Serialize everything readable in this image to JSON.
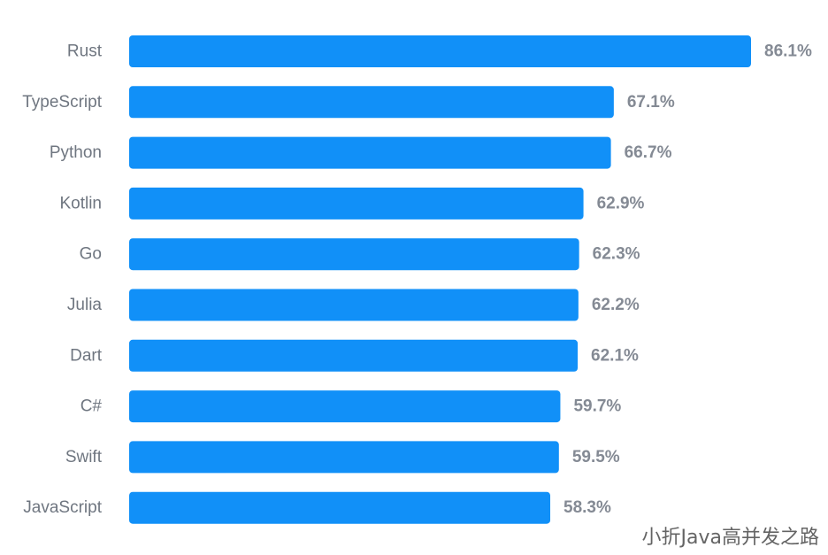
{
  "chart_data": {
    "type": "bar",
    "orientation": "horizontal",
    "categories": [
      "Rust",
      "TypeScript",
      "Python",
      "Kotlin",
      "Go",
      "Julia",
      "Dart",
      "C#",
      "Swift",
      "JavaScript"
    ],
    "values": [
      86.1,
      67.1,
      66.7,
      62.9,
      62.3,
      62.2,
      62.1,
      59.7,
      59.5,
      58.3
    ],
    "value_labels": [
      "86.1%",
      "67.1%",
      "66.7%",
      "62.9%",
      "62.3%",
      "62.2%",
      "62.1%",
      "59.7%",
      "59.5%",
      "58.3%"
    ],
    "title": "",
    "xlabel": "",
    "ylabel": "",
    "xlim": [
      0,
      86.1
    ],
    "grid": false,
    "legend": "none",
    "bar_color": "#1190f8"
  },
  "watermark": {
    "text": "小折Java高并发之路"
  }
}
